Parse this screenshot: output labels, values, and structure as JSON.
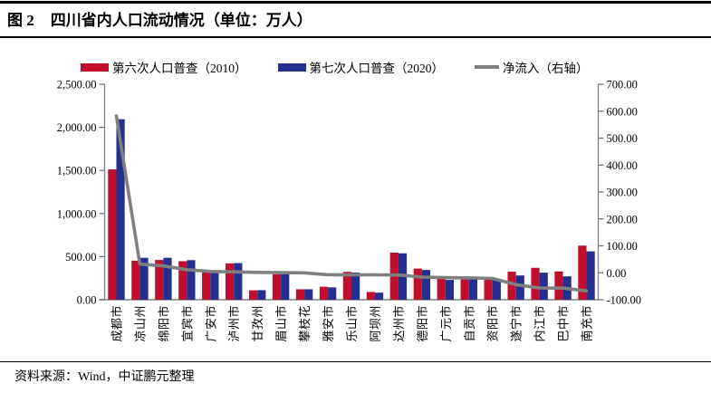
{
  "header": {
    "figure_label": "图 2",
    "title": "四川省内人口流动情况（单位：万人）"
  },
  "legend": {
    "items": [
      {
        "label": "第六次人口普查（2010）",
        "color": "#C00F2D",
        "shape": "rect"
      },
      {
        "label": "第七次人口普查（2020）",
        "color": "#24308F",
        "shape": "rect"
      },
      {
        "label": "净流入（右轴）",
        "color": "#7F7F7F",
        "shape": "line"
      }
    ]
  },
  "footer": {
    "source": "资料来源：Wind，中证鹏元整理"
  },
  "chart_data": {
    "type": "bar",
    "title": "四川省内人口流动情况",
    "unit": "万人",
    "legend_position": "top",
    "grid": false,
    "categories": [
      "成都市",
      "凉山州",
      "绵阳市",
      "宜宾市",
      "广安市",
      "泸州市",
      "甘孜州",
      "眉山市",
      "攀枝花",
      "雅安市",
      "乐山市",
      "阿坝州",
      "达州市",
      "德阳市",
      "广元市",
      "自贡市",
      "资阳市",
      "遂宁市",
      "内江市",
      "巴中市",
      "南充市"
    ],
    "series": [
      {
        "name": "第六次人口普查（2010）",
        "type": "bar",
        "axis": "left",
        "color": "#C00F2D",
        "values": [
          1511.9,
          453.3,
          461.4,
          447.2,
          320.5,
          421.8,
          109.2,
          295.0,
          121.4,
          150.7,
          323.3,
          89.9,
          546.8,
          361.6,
          248.4,
          267.9,
          251.9,
          325.3,
          370.3,
          328.4,
          627.9
        ]
      },
      {
        "name": "第七次人口普查（2020）",
        "type": "bar",
        "axis": "left",
        "color": "#24308F",
        "values": [
          2093.8,
          485.9,
          486.8,
          458.9,
          325.5,
          425.4,
          110.7,
          295.5,
          121.2,
          143.5,
          316.0,
          82.3,
          538.5,
          345.6,
          230.4,
          248.9,
          230.8,
          281.4,
          314.1,
          271.3,
          560.8
        ]
      },
      {
        "name": "净流入（右轴）",
        "type": "line",
        "axis": "right",
        "color": "#7F7F7F",
        "values": [
          581.9,
          32.6,
          25.4,
          11.7,
          5.0,
          3.6,
          1.5,
          0.5,
          -0.2,
          -7.2,
          -7.3,
          -7.6,
          -8.3,
          -15.9,
          -18.0,
          -18.9,
          -21.1,
          -43.8,
          -56.2,
          -57.1,
          -67.1
        ]
      }
    ],
    "left_axis": {
      "min": 0,
      "max": 2500,
      "step": 500,
      "tick_labels": [
        "2,500.00",
        "2,000.00",
        "1,500.00",
        "1,000.00",
        "500.00",
        "0.00"
      ]
    },
    "right_axis": {
      "min": -100,
      "max": 700,
      "step": 100,
      "tick_labels": [
        "700.00",
        "600.00",
        "500.00",
        "400.00",
        "300.00",
        "200.00",
        "100.00",
        "0.00",
        "-100.00"
      ]
    }
  }
}
